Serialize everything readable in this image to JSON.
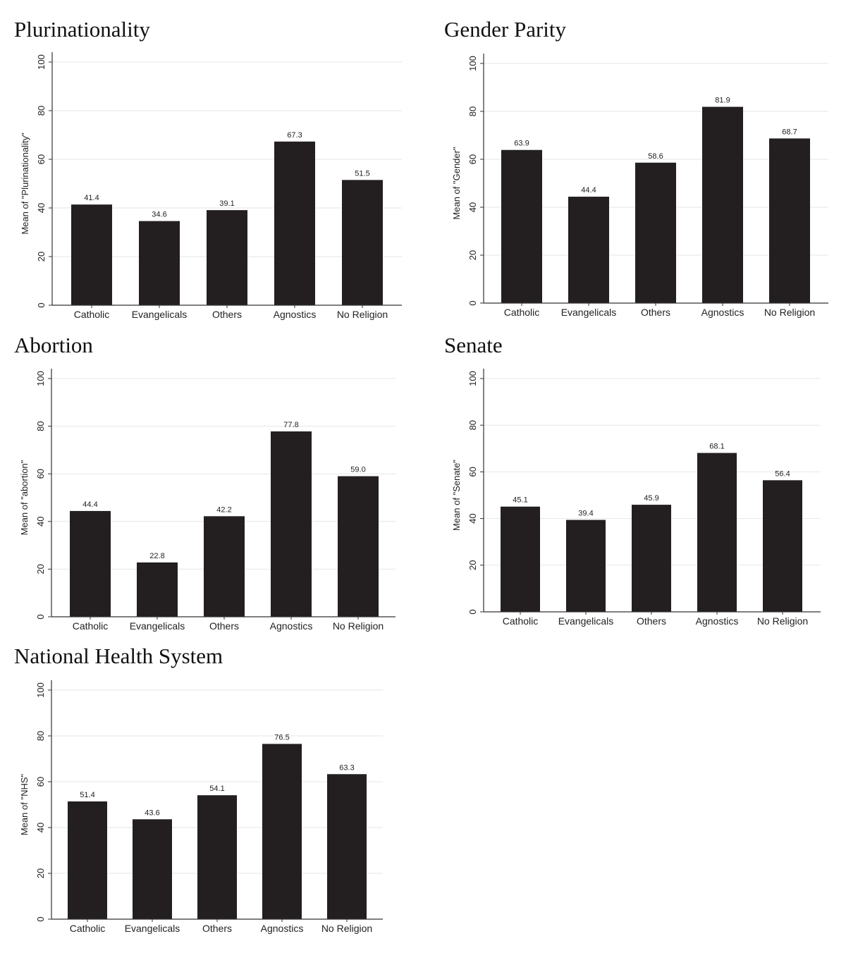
{
  "colors": {
    "bar": "#231f20",
    "axis": "#333333",
    "grid": "#e6e6e6",
    "text": "#222222"
  },
  "chart_data": [
    {
      "type": "bar",
      "title": "Plurinationality",
      "xlabel": "",
      "ylabel": "Mean of \"Plurinationality\"",
      "categories": [
        "Catholic",
        "Evangelicals",
        "Others",
        "Agnostics",
        "No Religion"
      ],
      "values": [
        41.4,
        34.6,
        39.1,
        67.3,
        51.5
      ],
      "value_labels": [
        "41.4",
        "34.6",
        "39.1",
        "67.3",
        "51.5"
      ],
      "ylim": [
        0,
        100
      ],
      "yticks": [
        0,
        20,
        40,
        60,
        80,
        100
      ],
      "grid": true
    },
    {
      "type": "bar",
      "title": "Gender Parity",
      "xlabel": "",
      "ylabel": "Mean of \"Gender\"",
      "categories": [
        "Catholic",
        "Evangelicals",
        "Others",
        "Agnostics",
        "No Religion"
      ],
      "values": [
        63.9,
        44.4,
        58.6,
        81.9,
        68.7
      ],
      "value_labels": [
        "63.9",
        "44.4",
        "58.6",
        "81.9",
        "68.7"
      ],
      "ylim": [
        0,
        100
      ],
      "yticks": [
        0,
        20,
        40,
        60,
        80,
        100
      ],
      "grid": true
    },
    {
      "type": "bar",
      "title": "Abortion",
      "xlabel": "",
      "ylabel": "Mean of \"abortion\"",
      "categories": [
        "Catholic",
        "Evangelicals",
        "Others",
        "Agnostics",
        "No Religion"
      ],
      "values": [
        44.4,
        22.8,
        42.2,
        77.8,
        59.0
      ],
      "value_labels": [
        "44.4",
        "22.8",
        "42.2",
        "77.8",
        "59.0"
      ],
      "ylim": [
        0,
        100
      ],
      "yticks": [
        0,
        20,
        40,
        60,
        80,
        100
      ],
      "grid": true
    },
    {
      "type": "bar",
      "title": "Senate",
      "xlabel": "",
      "ylabel": "Mean of \"Senate\"",
      "categories": [
        "Catholic",
        "Evangelicals",
        "Others",
        "Agnostics",
        "No Religion"
      ],
      "values": [
        45.1,
        39.4,
        45.9,
        68.1,
        56.4
      ],
      "value_labels": [
        "45.1",
        "39.4",
        "45.9",
        "68.1",
        "56.4"
      ],
      "ylim": [
        0,
        100
      ],
      "yticks": [
        0,
        20,
        40,
        60,
        80,
        100
      ],
      "grid": true
    },
    {
      "type": "bar",
      "title": "National Health System",
      "xlabel": "",
      "ylabel": "Mean of \"NHS\"",
      "categories": [
        "Catholic",
        "Evangelicals",
        "Others",
        "Agnostics",
        "No Religion"
      ],
      "values": [
        51.4,
        43.6,
        54.1,
        76.5,
        63.3
      ],
      "value_labels": [
        "51.4",
        "43.6",
        "54.1",
        "76.5",
        "63.3"
      ],
      "ylim": [
        0,
        100
      ],
      "yticks": [
        0,
        20,
        40,
        60,
        80,
        100
      ],
      "grid": true
    }
  ]
}
